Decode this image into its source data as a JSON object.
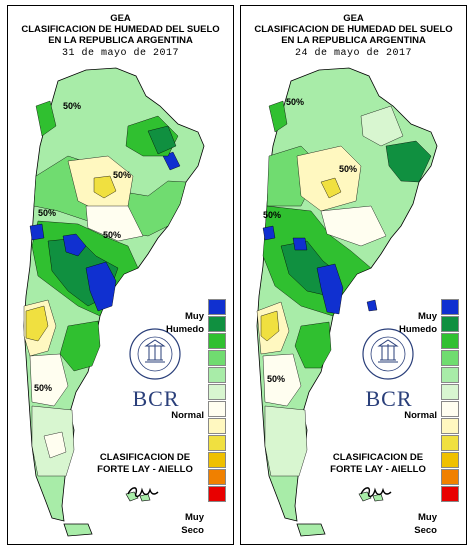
{
  "panels": [
    {
      "org": "GEA",
      "title_line1": "CLASIFICACION DE HUMEDAD DEL SUELO",
      "title_line2": "EN LA REPUBLICA ARGENTINA",
      "date": "31 de mayo de 2017",
      "contour_labels": [
        "50%",
        "50%",
        "50%",
        "50%",
        "50%"
      ]
    },
    {
      "org": "GEA",
      "title_line1": "CLASIFICACION DE HUMEDAD DEL SUELO",
      "title_line2": "EN LA REPUBLICA ARGENTINA",
      "date": "24 de mayo de 2017",
      "contour_labels": [
        "50%",
        "50%",
        "50%",
        "50%"
      ]
    }
  ],
  "legend": {
    "top_label_1": "Muy",
    "top_label_2": "Humedo",
    "middle_label": "Normal",
    "bottom_label_1": "Muy",
    "bottom_label_2": "Seco",
    "colors": [
      "#1030d0",
      "#109040",
      "#30c030",
      "#70dc70",
      "#a8eca8",
      "#d8f6d0",
      "#fffef0",
      "#fff8c0",
      "#f0e040",
      "#f0c000",
      "#f08000",
      "#e80000"
    ]
  },
  "method_line1": "CLASIFICACION DE",
  "method_line2": "FORTE LAY - AIELLO",
  "logo_text": "BCR",
  "seal_text": "BOLSA DE COMERCIO DE ROSARIO",
  "signature": "GEA"
}
